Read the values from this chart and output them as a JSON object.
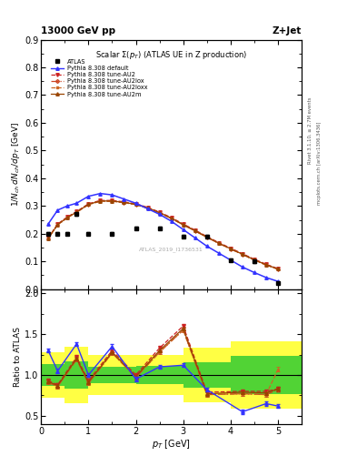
{
  "title_top": "13000 GeV pp",
  "title_top_right": "Z+Jet",
  "plot_title": "Scalar $\\Sigma(p_T)$ (ATLAS UE in Z production)",
  "watermark": "ATLAS_2019_I1736531",
  "ylabel_main": "$1/N_{ch}\\,dN_{ch}/dp_T$ [GeV]",
  "ylabel_ratio": "Ratio to ATLAS",
  "xlabel": "$p_T$ [GeV]",
  "right_label_top": "Rivet 3.1.10, ≥ 2.7M events",
  "right_label_bot": "mcplots.cern.ch [arXiv:1306.3436]",
  "atlas_x": [
    0.15,
    0.35,
    0.55,
    0.75,
    1.0,
    1.5,
    2.0,
    2.5,
    3.0,
    3.5,
    4.0,
    4.5,
    5.0
  ],
  "atlas_y": [
    0.2,
    0.2,
    0.2,
    0.27,
    0.2,
    0.2,
    0.22,
    0.22,
    0.19,
    0.19,
    0.105,
    0.1,
    0.023
  ],
  "atlas_yerr": [
    0.005,
    0.005,
    0.005,
    0.005,
    0.005,
    0.005,
    0.005,
    0.005,
    0.005,
    0.005,
    0.005,
    0.005,
    0.003
  ],
  "default_x": [
    0.15,
    0.35,
    0.55,
    0.75,
    1.0,
    1.25,
    1.5,
    1.75,
    2.0,
    2.25,
    2.5,
    2.75,
    3.0,
    3.25,
    3.5,
    3.75,
    4.0,
    4.25,
    4.5,
    4.75,
    5.0
  ],
  "default_y": [
    0.235,
    0.285,
    0.3,
    0.31,
    0.335,
    0.345,
    0.34,
    0.325,
    0.31,
    0.29,
    0.27,
    0.245,
    0.215,
    0.185,
    0.155,
    0.13,
    0.105,
    0.08,
    0.06,
    0.042,
    0.028
  ],
  "au2_x": [
    0.15,
    0.35,
    0.55,
    0.75,
    1.0,
    1.25,
    1.5,
    1.75,
    2.0,
    2.25,
    2.5,
    2.75,
    3.0,
    3.25,
    3.5,
    3.75,
    4.0,
    4.25,
    4.5,
    4.75,
    5.0
  ],
  "au2_y": [
    0.185,
    0.235,
    0.26,
    0.28,
    0.308,
    0.32,
    0.32,
    0.315,
    0.308,
    0.295,
    0.278,
    0.258,
    0.235,
    0.213,
    0.19,
    0.168,
    0.148,
    0.128,
    0.108,
    0.09,
    0.074
  ],
  "au2lox_x": [
    0.15,
    0.35,
    0.55,
    0.75,
    1.0,
    1.25,
    1.5,
    1.75,
    2.0,
    2.25,
    2.5,
    2.75,
    3.0,
    3.25,
    3.5,
    3.75,
    4.0,
    4.25,
    4.5,
    4.75,
    5.0
  ],
  "au2lox_y": [
    0.183,
    0.232,
    0.257,
    0.277,
    0.305,
    0.317,
    0.317,
    0.312,
    0.305,
    0.292,
    0.275,
    0.255,
    0.232,
    0.21,
    0.187,
    0.165,
    0.145,
    0.125,
    0.105,
    0.087,
    0.072
  ],
  "au2loxx_x": [
    0.15,
    0.35,
    0.55,
    0.75,
    1.0,
    1.25,
    1.5,
    1.75,
    2.0,
    2.25,
    2.5,
    2.75,
    3.0,
    3.25,
    3.5,
    3.75,
    4.0,
    4.25,
    4.5,
    4.75,
    5.0
  ],
  "au2loxx_y": [
    0.183,
    0.232,
    0.257,
    0.277,
    0.305,
    0.317,
    0.317,
    0.312,
    0.305,
    0.292,
    0.275,
    0.255,
    0.232,
    0.21,
    0.187,
    0.165,
    0.145,
    0.125,
    0.105,
    0.087,
    0.072
  ],
  "au2m_x": [
    0.15,
    0.35,
    0.55,
    0.75,
    1.0,
    1.25,
    1.5,
    1.75,
    2.0,
    2.25,
    2.5,
    2.75,
    3.0,
    3.25,
    3.5,
    3.75,
    4.0,
    4.25,
    4.5,
    4.75,
    5.0
  ],
  "au2m_y": [
    0.183,
    0.233,
    0.258,
    0.278,
    0.306,
    0.318,
    0.318,
    0.313,
    0.306,
    0.293,
    0.276,
    0.256,
    0.233,
    0.211,
    0.188,
    0.166,
    0.146,
    0.126,
    0.106,
    0.088,
    0.073
  ],
  "ratio_default_x": [
    0.15,
    0.35,
    0.75,
    1.0,
    1.5,
    2.0,
    2.5,
    3.0,
    3.5,
    4.25,
    4.75,
    5.0
  ],
  "ratio_default_y": [
    1.3,
    1.05,
    1.38,
    1.0,
    1.35,
    0.95,
    1.1,
    1.12,
    0.82,
    0.55,
    0.65,
    0.62
  ],
  "ratio_au2_x": [
    0.15,
    0.35,
    0.75,
    1.0,
    1.5,
    2.0,
    2.5,
    3.0,
    3.5,
    4.25,
    4.75,
    5.0
  ],
  "ratio_au2_y": [
    0.93,
    0.88,
    1.22,
    0.93,
    1.3,
    1.0,
    1.33,
    1.6,
    0.79,
    0.8,
    0.8,
    0.83
  ],
  "ratio_au2lox_x": [
    0.15,
    0.35,
    0.75,
    1.0,
    1.5,
    2.0,
    2.5,
    3.0,
    3.5,
    4.25,
    4.75,
    5.0
  ],
  "ratio_au2lox_y": [
    0.91,
    0.86,
    1.19,
    0.9,
    1.27,
    0.97,
    1.28,
    1.55,
    0.76,
    0.77,
    0.76,
    0.82
  ],
  "ratio_au2loxx_x": [
    0.15,
    0.35,
    0.75,
    1.0,
    1.5,
    2.0,
    2.5,
    3.0,
    3.5,
    4.25,
    4.75,
    5.0
  ],
  "ratio_au2loxx_y": [
    0.91,
    0.86,
    1.19,
    0.9,
    1.27,
    0.97,
    1.28,
    1.55,
    0.76,
    0.77,
    0.76,
    1.07
  ],
  "ratio_au2m_x": [
    0.15,
    0.35,
    0.75,
    1.0,
    1.5,
    2.0,
    2.5,
    3.0,
    3.5,
    4.25,
    4.75,
    5.0
  ],
  "ratio_au2m_y": [
    0.92,
    0.87,
    1.2,
    0.91,
    1.28,
    0.98,
    1.3,
    1.57,
    0.77,
    0.79,
    0.78,
    0.83
  ],
  "band_edges": [
    0.0,
    0.5,
    1.0,
    2.0,
    3.0,
    4.0,
    5.5
  ],
  "band_green_lo": [
    0.87,
    0.83,
    0.9,
    0.89,
    0.84,
    0.77,
    0.77
  ],
  "band_green_hi": [
    1.13,
    1.17,
    1.1,
    1.11,
    1.16,
    1.23,
    1.23
  ],
  "band_yellow_lo": [
    0.72,
    0.65,
    0.76,
    0.75,
    0.67,
    0.59,
    0.59
  ],
  "band_yellow_hi": [
    1.28,
    1.35,
    1.24,
    1.25,
    1.33,
    1.41,
    1.41
  ],
  "color_default": "#3333ff",
  "color_au2": "#cc2222",
  "color_au2lox": "#cc4422",
  "color_au2loxx": "#cc6622",
  "color_au2m": "#994400",
  "color_atlas": "#000000",
  "color_green": "#33cc33",
  "color_yellow": "#ffff44",
  "xlim": [
    0.0,
    5.5
  ],
  "ylim_main": [
    0.0,
    0.9
  ],
  "ylim_ratio": [
    0.4,
    2.05
  ],
  "yticks_main": [
    0.0,
    0.1,
    0.2,
    0.3,
    0.4,
    0.5,
    0.6,
    0.7,
    0.8,
    0.9
  ],
  "yticks_ratio": [
    0.5,
    1.0,
    1.5,
    2.0
  ]
}
